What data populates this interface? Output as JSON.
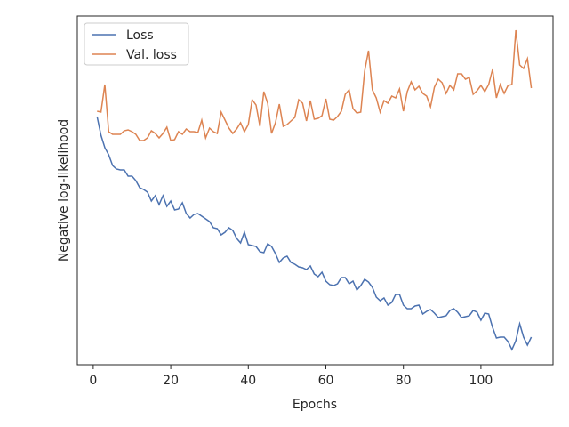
{
  "chart_data": {
    "type": "line",
    "x_label": "Epochs",
    "y_label": "Negative log-likelihood",
    "x": [
      1,
      2,
      3,
      4,
      5,
      6,
      7,
      8,
      9,
      10,
      11,
      12,
      13,
      14,
      15,
      16,
      17,
      18,
      19,
      20,
      21,
      22,
      23,
      24,
      25,
      26,
      27,
      28,
      29,
      30,
      31,
      32,
      33,
      34,
      35,
      36,
      37,
      38,
      39,
      40,
      41,
      42,
      43,
      44,
      45,
      46,
      47,
      48,
      49,
      50,
      51,
      52,
      53,
      54,
      55,
      56,
      57,
      58,
      59,
      60,
      61,
      62,
      63,
      64,
      65,
      66,
      67,
      68,
      69,
      70,
      71,
      72,
      73,
      74,
      75,
      76,
      77,
      78,
      79,
      80,
      81,
      82,
      83,
      84,
      85,
      86,
      87,
      88,
      89,
      90,
      91,
      92,
      93,
      94,
      95,
      96,
      97,
      98,
      99,
      100,
      101,
      102,
      103,
      104,
      105,
      106,
      107,
      108,
      109,
      110,
      111,
      112,
      113
    ],
    "series": [
      {
        "name": "Loss",
        "color": "#4c72b0",
        "values": [
          279,
          258,
          244,
          236,
          224,
          220,
          219,
          219,
          212,
          212,
          207,
          199,
          197,
          194,
          184,
          190,
          180,
          190,
          178,
          184,
          174,
          175,
          182,
          170,
          165,
          169,
          170,
          167,
          164,
          161,
          154,
          153,
          146,
          149,
          154,
          151,
          142,
          137,
          149,
          135,
          134,
          133,
          127,
          126,
          136,
          133,
          125,
          115,
          120,
          122,
          115,
          113,
          110,
          109,
          107,
          111,
          102,
          99,
          104,
          94,
          90,
          89,
          91,
          98,
          98,
          91,
          94,
          84,
          89,
          96,
          93,
          87,
          76,
          72,
          75,
          67,
          70,
          79,
          79,
          67,
          63,
          63,
          66,
          67,
          57,
          60,
          62,
          58,
          53,
          54,
          55,
          61,
          63,
          59,
          53,
          54,
          55,
          61,
          59,
          50,
          58,
          57,
          42,
          30,
          31,
          31,
          26,
          17,
          27,
          46,
          31,
          22,
          31
        ]
      },
      {
        "name": "Val. loss",
        "color": "#dd8452",
        "values": [
          285,
          284,
          315,
          262,
          259,
          259,
          259,
          263,
          264,
          262,
          259,
          252,
          252,
          255,
          263,
          260,
          255,
          260,
          267,
          252,
          253,
          262,
          259,
          265,
          262,
          262,
          261,
          275,
          255,
          266,
          262,
          260,
          284,
          275,
          266,
          260,
          265,
          272,
          262,
          270,
          298,
          292,
          268,
          307,
          294,
          260,
          272,
          293,
          268,
          270,
          274,
          278,
          298,
          294,
          274,
          297,
          276,
          277,
          280,
          299,
          276,
          275,
          279,
          285,
          304,
          309,
          288,
          283,
          284,
          330,
          353,
          309,
          300,
          284,
          297,
          294,
          302,
          300,
          310,
          285,
          307,
          318,
          309,
          313,
          305,
          302,
          290,
          312,
          321,
          317,
          305,
          314,
          309,
          327,
          327,
          321,
          323,
          304,
          308,
          314,
          307,
          315,
          332,
          300,
          315,
          305,
          314,
          315,
          376,
          337,
          333,
          344,
          311
        ]
      }
    ],
    "xlim": [
      -4.1,
      118.6
    ],
    "xticks": [
      0,
      20,
      40,
      60,
      80,
      100
    ],
    "ylim": [
      0,
      392
    ],
    "legend": "upper left"
  }
}
